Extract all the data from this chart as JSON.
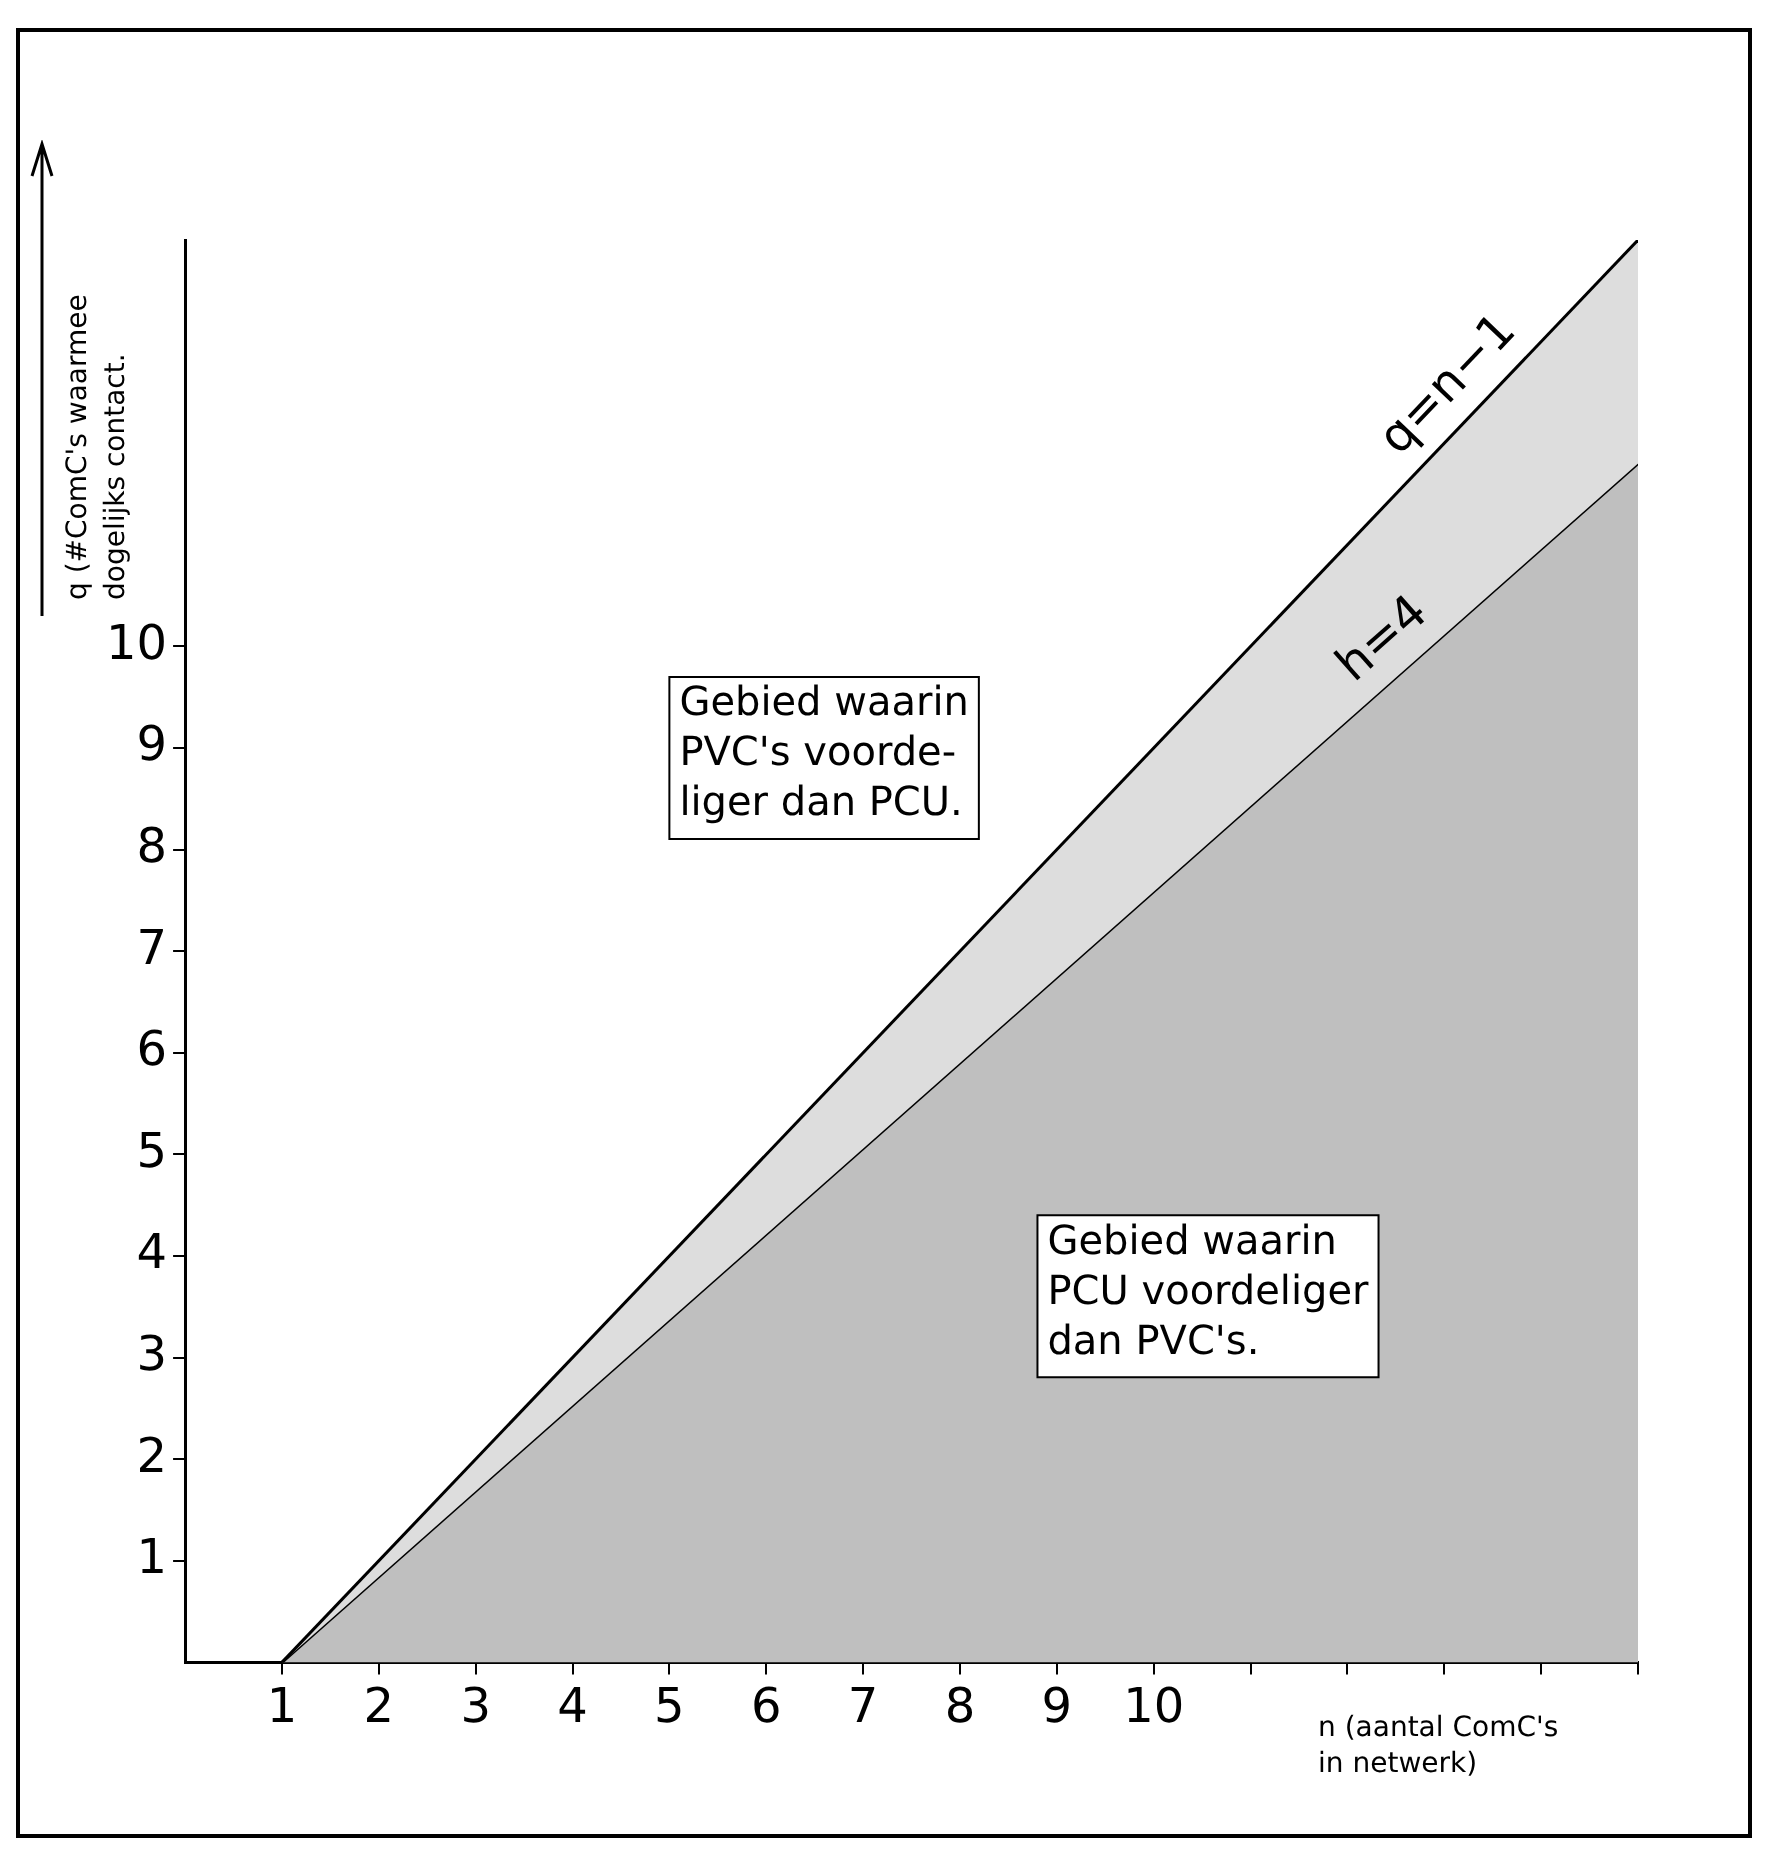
{
  "chart_data": {
    "type": "area",
    "xlabel": "n (aantal ComC's\nin netwerk)",
    "ylabel": "q (#ComC's waarmee\ndogelijks contact.",
    "x": [
      1,
      15
    ],
    "series": [
      {
        "name": "q=n−1",
        "color": "#dddddd",
        "values": [
          0,
          14
        ]
      },
      {
        "name": "h=4",
        "color": "#bfbfbf",
        "values": [
          0,
          11.8
        ]
      }
    ],
    "xlim": [
      0,
      15
    ],
    "xticks": [
      1,
      2,
      3,
      4,
      5,
      6,
      7,
      8,
      9,
      10,
      {
        "value": 11,
        "label": null
      },
      {
        "value": 12,
        "label": null
      },
      {
        "value": 13,
        "label": null
      },
      {
        "value": 14,
        "label": null
      },
      {
        "value": 15,
        "label": null
      }
    ],
    "ylim": [
      0,
      14
    ],
    "yticks": [
      1,
      2,
      3,
      4,
      5,
      6,
      7,
      8,
      9,
      10
    ],
    "grid": false,
    "legend": false,
    "marker": "none",
    "annotations": [
      "Gebied waarin\nPVC's voorde-\nliger dan PCU.",
      "Gebied waarin\nPCU voordeliger\ndan PVC's."
    ]
  }
}
